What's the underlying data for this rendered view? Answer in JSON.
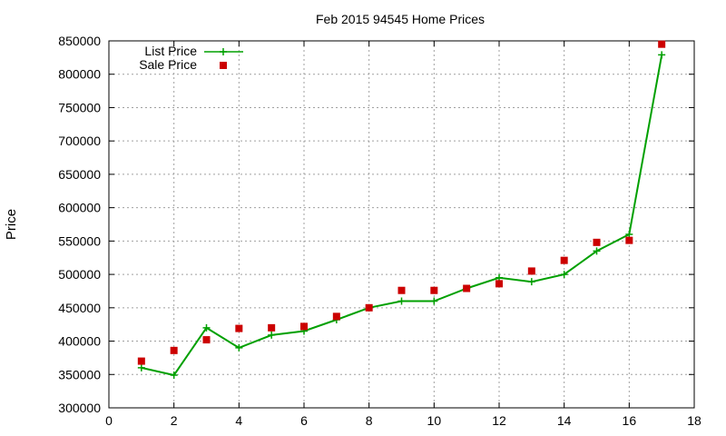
{
  "chart_data": {
    "type": "line",
    "title": "Feb 2015 94545 Home Prices",
    "xlabel": "",
    "ylabel": "Price",
    "xlim": [
      0,
      18
    ],
    "ylim": [
      300000,
      850000
    ],
    "xticks": [
      0,
      2,
      4,
      6,
      8,
      10,
      12,
      14,
      16,
      18
    ],
    "yticks": [
      300000,
      350000,
      400000,
      450000,
      500000,
      550000,
      600000,
      650000,
      700000,
      750000,
      800000,
      850000
    ],
    "grid": true,
    "legend_position": "top-left",
    "series": [
      {
        "name": "List Price",
        "style": "line with plus markers",
        "color": "#00a000",
        "x": [
          1,
          2,
          3,
          4,
          5,
          6,
          7,
          8,
          9,
          10,
          11,
          12,
          13,
          14,
          15,
          16,
          17
        ],
        "y": [
          360000,
          349000,
          420000,
          390000,
          409000,
          415000,
          432000,
          450000,
          460000,
          460000,
          479000,
          495000,
          489000,
          500000,
          535000,
          560000,
          829000
        ]
      },
      {
        "name": "Sale Price",
        "style": "square markers",
        "color": "#cc0000",
        "x": [
          1,
          2,
          3,
          4,
          5,
          6,
          7,
          8,
          9,
          10,
          11,
          12,
          13,
          14,
          15,
          16,
          17
        ],
        "y": [
          370000,
          386000,
          402000,
          419000,
          420000,
          422000,
          437000,
          450000,
          476000,
          476000,
          479000,
          486000,
          505000,
          521000,
          548000,
          551000,
          845000
        ]
      }
    ]
  }
}
